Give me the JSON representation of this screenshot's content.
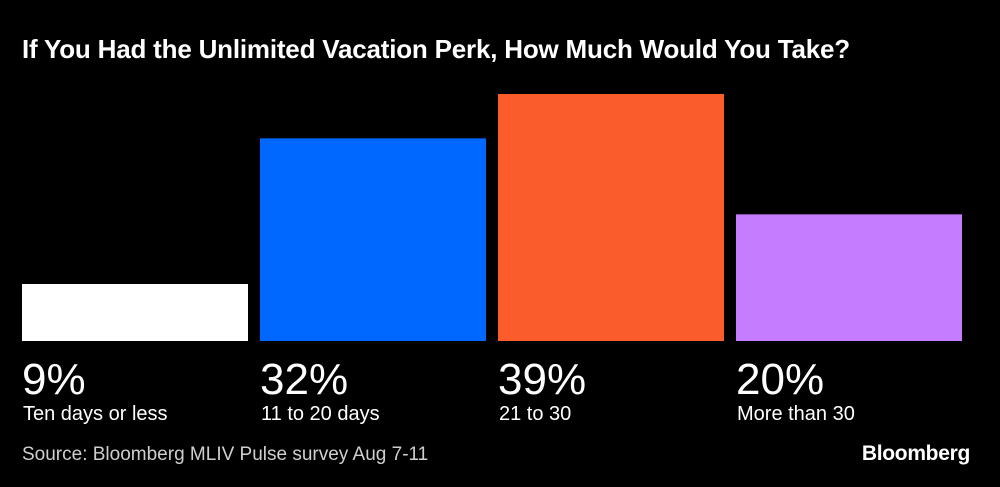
{
  "chart_data": {
    "type": "bar",
    "title": "If You Had the Unlimited Vacation Perk, How Much Would You Take?",
    "categories": [
      "Ten days or less",
      "11 to 20 days",
      "21 to 30",
      "More than 30"
    ],
    "values": [
      9,
      32,
      39,
      20
    ],
    "value_labels": [
      "9%",
      "32%",
      "39%",
      "20%"
    ],
    "colors": [
      "#ffffff",
      "#0068ff",
      "#fa5c2b",
      "#c67cfe"
    ],
    "unit": "%",
    "ylim": [
      0,
      39
    ],
    "xlabel": "",
    "ylabel": "",
    "grid": false,
    "legend": "none"
  },
  "footer": {
    "source": "Source: Bloomberg MLIV Pulse survey Aug 7-11",
    "brand": "Bloomberg"
  }
}
